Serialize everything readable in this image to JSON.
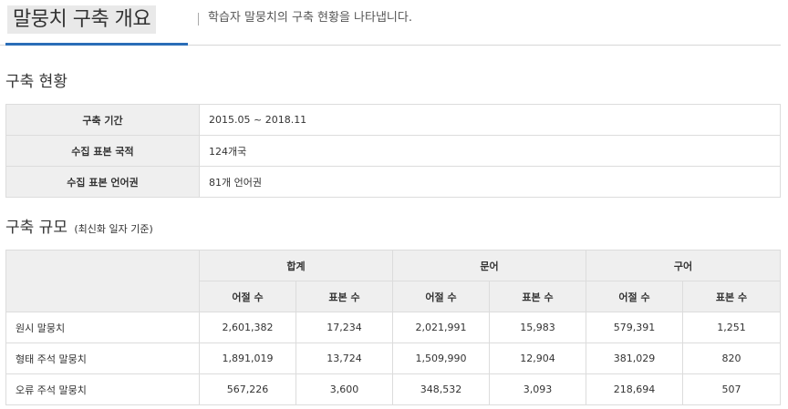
{
  "header": {
    "title": "말뭉치 구축 개요",
    "description": "학습자 말뭉치의 구축 현황을 나타냅니다."
  },
  "status_section": {
    "heading": "구축 현황",
    "rows": [
      {
        "label": "구축 기간",
        "value": "2015.05 ~ 2018.11"
      },
      {
        "label": "수집 표본 국적",
        "value": "124개국"
      },
      {
        "label": "수집 표본 언어권",
        "value": "81개 언어권"
      }
    ]
  },
  "scale_section": {
    "heading": "구축 규모",
    "note": "(최신화 일자 기준)",
    "group_headers": [
      "합계",
      "문어",
      "구어"
    ],
    "sub_headers": [
      "어절 수",
      "표본 수",
      "어절 수",
      "표본 수",
      "어절 수",
      "표본 수"
    ],
    "rows": [
      {
        "label": "원시 말뭉치",
        "values": [
          "2,601,382",
          "17,234",
          "2,021,991",
          "15,983",
          "579,391",
          "1,251"
        ]
      },
      {
        "label": "형태 주석 말뭉치",
        "values": [
          "1,891,019",
          "13,724",
          "1,509,990",
          "12,904",
          "381,029",
          "820"
        ]
      },
      {
        "label": "오류 주석 말뭉치",
        "values": [
          "567,226",
          "3,600",
          "348,532",
          "3,093",
          "218,694",
          "507"
        ]
      }
    ]
  }
}
